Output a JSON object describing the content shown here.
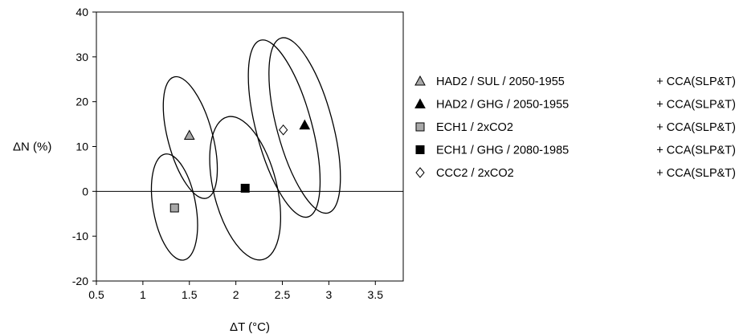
{
  "chart_data": {
    "type": "scatter",
    "xlabel": "ΔT (°C)",
    "ylabel": "ΔN (%)",
    "xlim": [
      0.5,
      3.8
    ],
    "ylim": [
      -20,
      40
    ],
    "xticks": [
      "0.5",
      "1",
      "1.5",
      "2",
      "2.5",
      "3",
      "3.5"
    ],
    "yticks": [
      "-20",
      "-10",
      "0",
      "10",
      "20",
      "30",
      "40"
    ],
    "grid": false,
    "zero_line": true,
    "legend_position": "right",
    "series": [
      {
        "name": "HAD2 / SUL / 2050-1955",
        "method": "+ CCA(SLP&T)",
        "marker": "triangle",
        "fill": "#a8a8a8",
        "x": 1.5,
        "y": 12.5,
        "ellipse": {
          "cx": 1.51,
          "cy": 12.0,
          "half_dx": 0.24,
          "half_dy": 14.0,
          "tilt_deg": -15
        }
      },
      {
        "name": "HAD2 / GHG / 2050-1955",
        "method": "+ CCA(SLP&T)",
        "marker": "triangle",
        "fill": "#000000",
        "x": 2.74,
        "y": 14.8,
        "ellipse": {
          "cx": 2.74,
          "cy": 14.7,
          "half_dx": 0.3,
          "half_dy": 20.2,
          "tilt_deg": -15
        }
      },
      {
        "name": "ECH1 / 2xCO2",
        "method": "+ CCA(SLP&T)",
        "marker": "square",
        "fill": "#a8a8a8",
        "x": 1.34,
        "y": -3.7,
        "ellipse": {
          "cx": 1.34,
          "cy": -3.5,
          "half_dx": 0.23,
          "half_dy": 12.0,
          "tilt_deg": -10
        }
      },
      {
        "name": "ECH1 / GHG / 2080-1985",
        "method": "+ CCA(SLP&T)",
        "marker": "square",
        "fill": "#000000",
        "x": 2.1,
        "y": 0.7,
        "ellipse": {
          "cx": 2.1,
          "cy": 0.7,
          "half_dx": 0.34,
          "half_dy": 16.4,
          "tilt_deg": -14
        }
      },
      {
        "name": "CCC2 / 2xCO2",
        "method": "+ CCA(SLP&T)",
        "marker": "diamond",
        "fill": "#ffffff",
        "x": 2.51,
        "y": 13.7,
        "ellipse": {
          "cx": 2.52,
          "cy": 14.0,
          "half_dx": 0.3,
          "half_dy": 20.4,
          "tilt_deg": -15
        }
      }
    ]
  }
}
